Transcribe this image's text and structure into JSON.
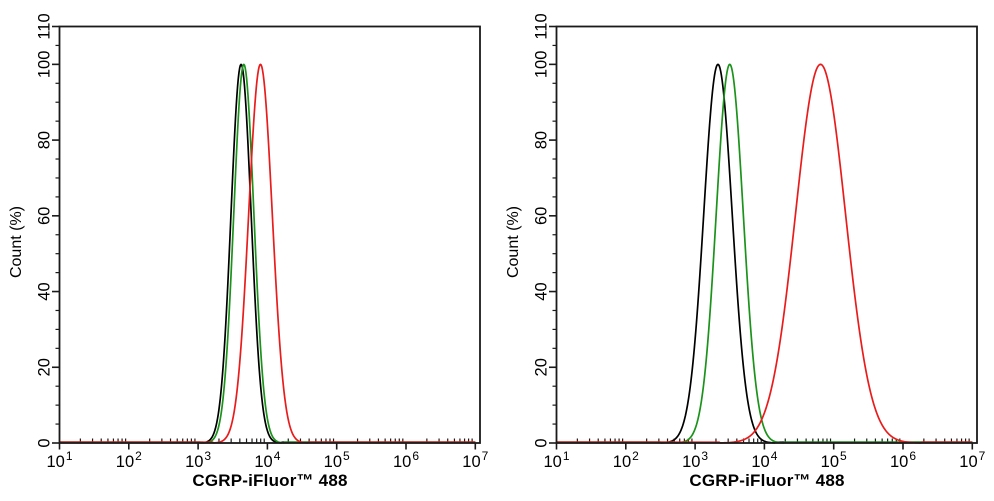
{
  "figure": {
    "background": "#ffffff",
    "axis_color": "#1a1a1a",
    "text_color": "#000000"
  },
  "chart_data": [
    {
      "type": "line",
      "panel": "left",
      "title": "",
      "xlabel": "CGRP-iFluor™ 488",
      "ylabel": "Count (%)",
      "x_scale": "log10",
      "x_tick_base": "10",
      "x_tick_exponents": [
        1,
        2,
        3,
        4,
        5,
        6,
        7
      ],
      "x_minor_tick_mantissas": [
        2,
        3,
        4,
        5,
        6,
        7,
        8,
        9
      ],
      "xlim_exponents": [
        1,
        7
      ],
      "y_ticks": [
        0,
        20,
        40,
        60,
        80,
        100,
        110
      ],
      "y_minor_tick_step": 5,
      "ylim": [
        0,
        110
      ],
      "grid": false,
      "legend": "none",
      "series": [
        {
          "name": "black-curve",
          "color": "#000000",
          "peak_x": 4200,
          "peak_log10": 3.62,
          "sigma_log10": 0.145,
          "peak_percent": 100
        },
        {
          "name": "green-curve",
          "color": "#1b931b",
          "peak_x": 4600,
          "peak_log10": 3.66,
          "sigma_log10": 0.145,
          "peak_percent": 100
        },
        {
          "name": "red-curve",
          "color": "#e91c1c",
          "peak_x": 7900,
          "peak_log10": 3.9,
          "sigma_log10": 0.17,
          "peak_percent": 100
        }
      ]
    },
    {
      "type": "line",
      "panel": "right",
      "title": "",
      "xlabel": "CGRP-iFluor™ 488",
      "ylabel": "Count (%)",
      "x_scale": "log10",
      "x_tick_base": "10",
      "x_tick_exponents": [
        1,
        2,
        3,
        4,
        5,
        6,
        7
      ],
      "x_minor_tick_mantissas": [
        2,
        3,
        4,
        5,
        6,
        7,
        8,
        9
      ],
      "xlim_exponents": [
        1,
        7
      ],
      "y_ticks": [
        0,
        20,
        40,
        60,
        80,
        100,
        110
      ],
      "y_minor_tick_step": 5,
      "ylim": [
        0,
        110
      ],
      "grid": false,
      "legend": "none",
      "series": [
        {
          "name": "black-curve",
          "color": "#000000",
          "peak_x": 2100,
          "peak_log10": 3.33,
          "sigma_log10": 0.205,
          "peak_percent": 100
        },
        {
          "name": "green-curve",
          "color": "#1b931b",
          "peak_x": 3200,
          "peak_log10": 3.5,
          "sigma_log10": 0.195,
          "peak_percent": 100
        },
        {
          "name": "red-curve",
          "color": "#e91c1c",
          "peak_x": 65000,
          "peak_log10": 4.81,
          "sigma_log10": 0.36,
          "peak_percent": 100
        }
      ]
    }
  ]
}
